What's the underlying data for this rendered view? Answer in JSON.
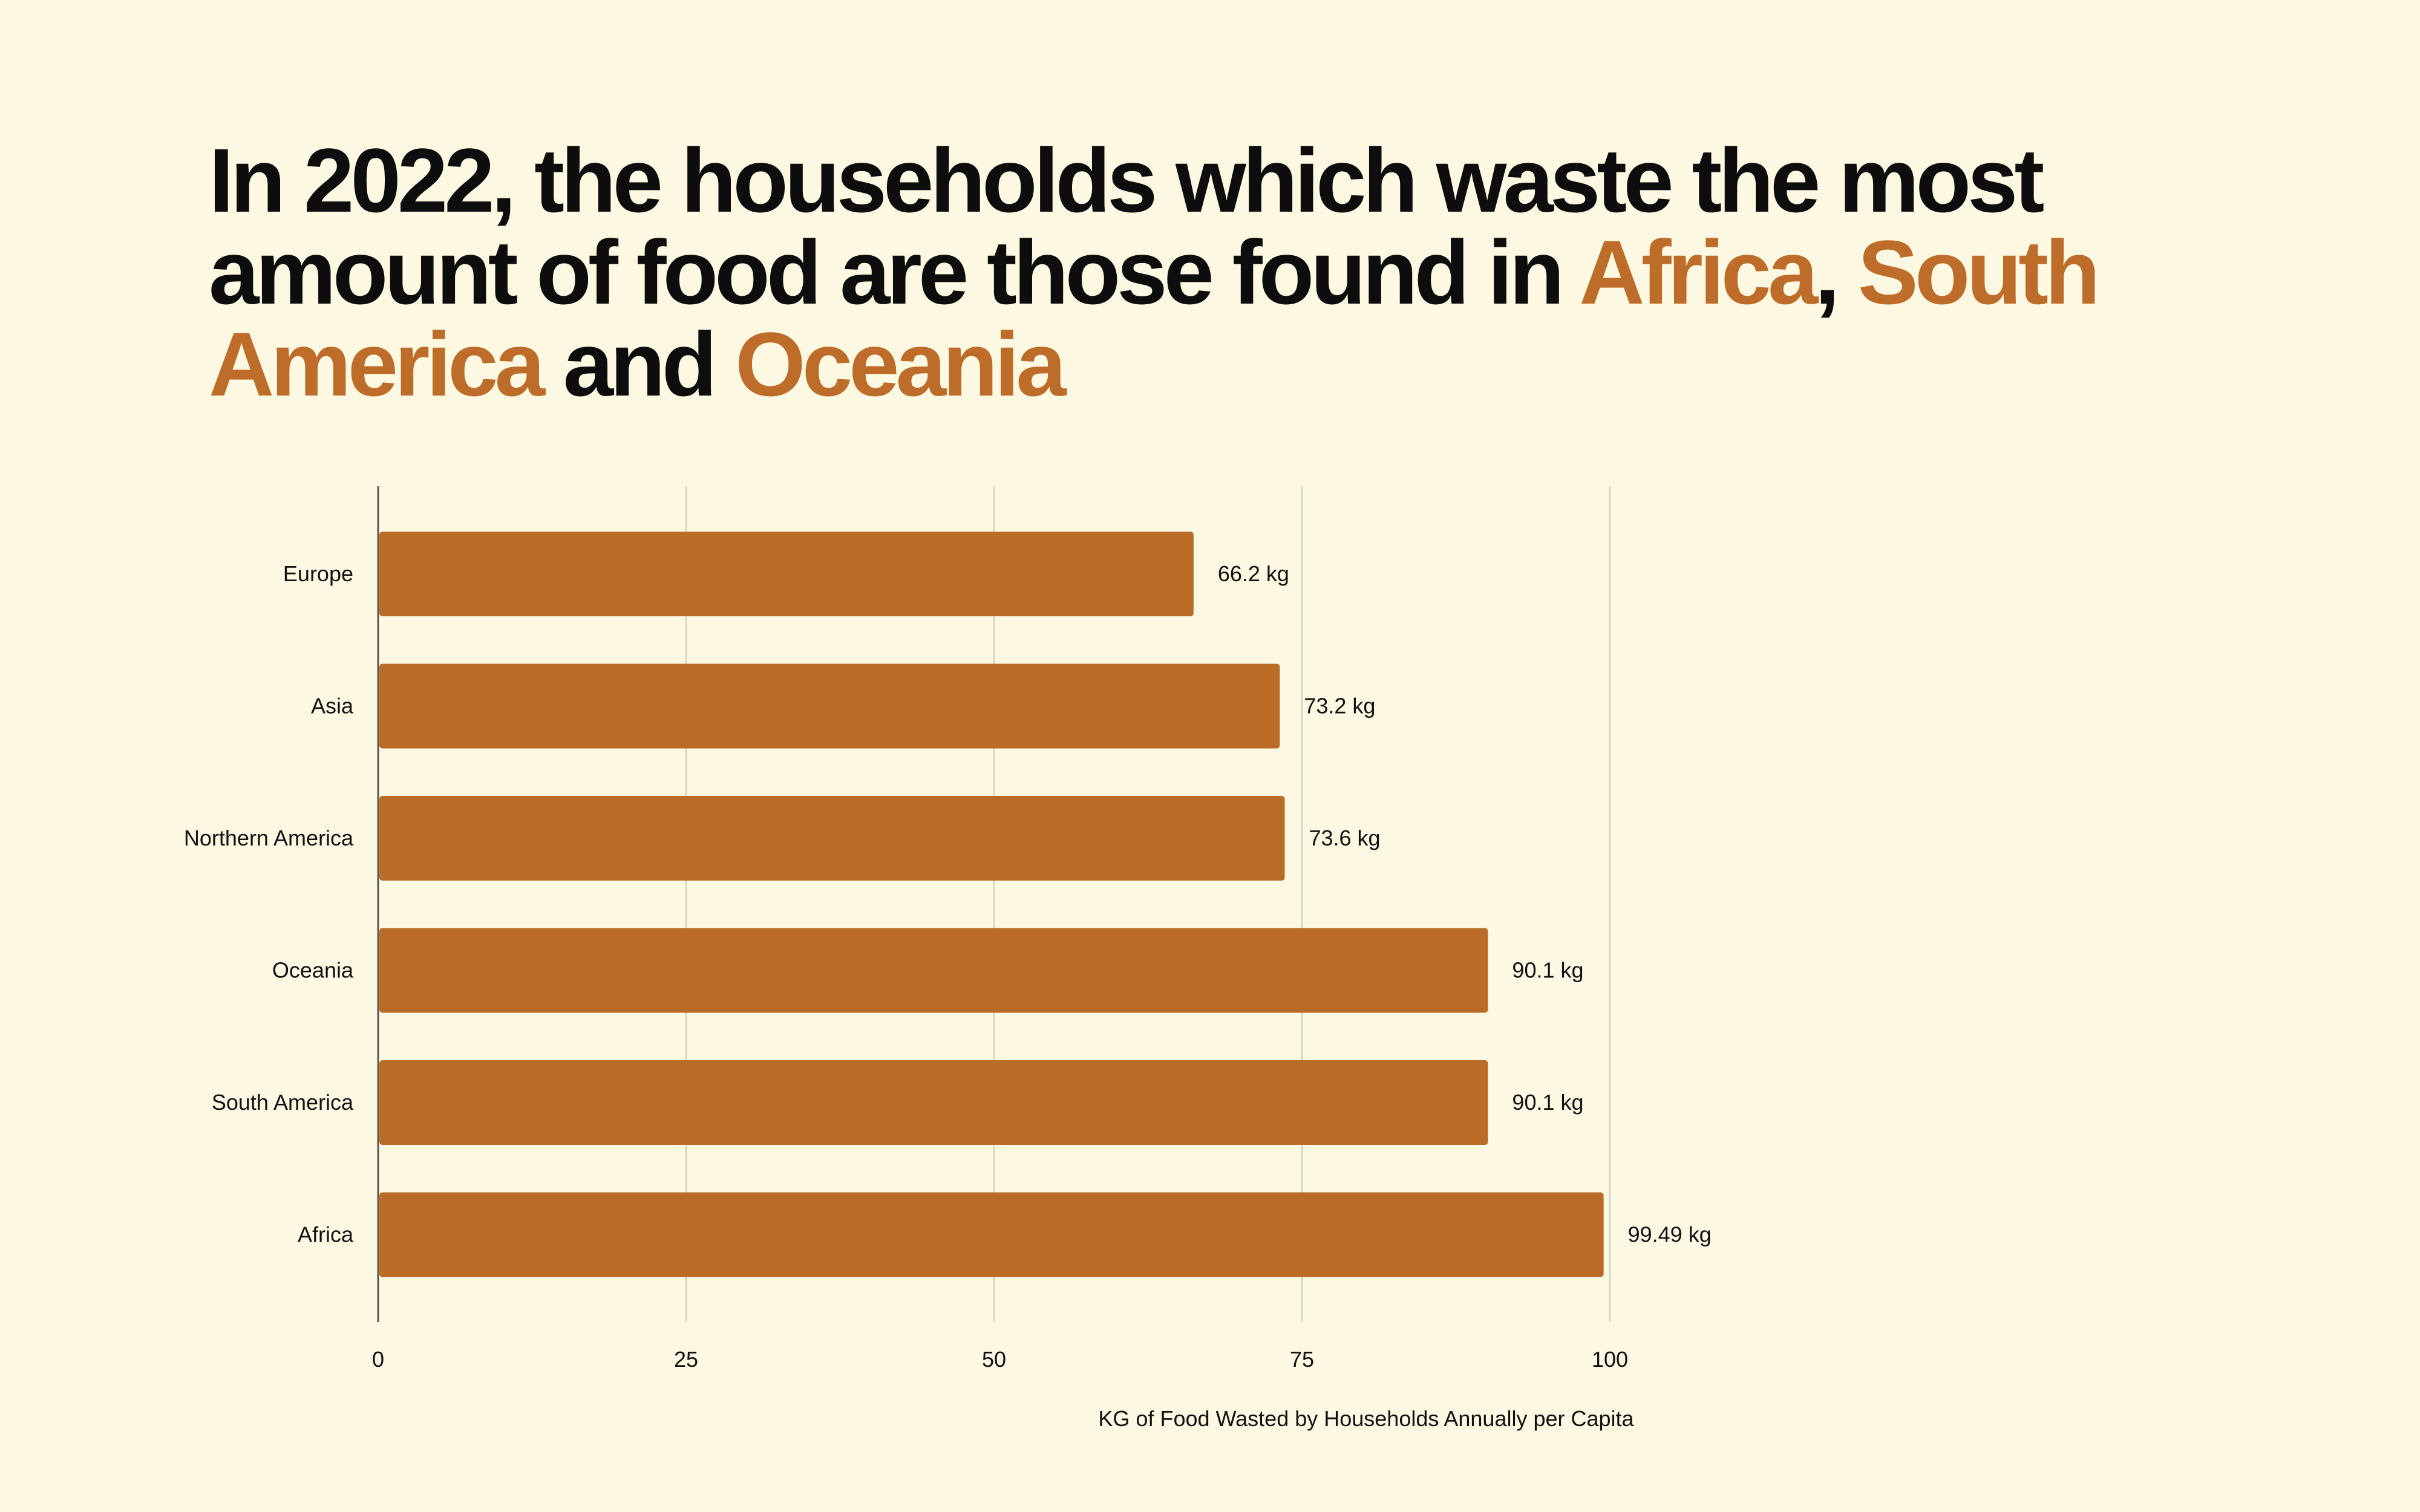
{
  "title": {
    "segments": [
      {
        "text": "In 2022, the households which waste the most amount of food are those found in ",
        "highlight": false
      },
      {
        "text": "Africa",
        "highlight": true
      },
      {
        "text": ", ",
        "highlight": false
      },
      {
        "text": "South America",
        "highlight": true
      },
      {
        "text": " and ",
        "highlight": false
      },
      {
        "text": "Oceania",
        "highlight": true
      }
    ]
  },
  "colors": {
    "background": "#FDF8E1",
    "bar": "#BA6B25",
    "highlight": "#BD6D29",
    "grid": "#D6D8C8",
    "axis": "#555555"
  },
  "chart_data": {
    "type": "bar",
    "orientation": "horizontal",
    "categories": [
      "Europe",
      "Asia",
      "Northern America",
      "Oceania",
      "South America",
      "Africa"
    ],
    "values": [
      66.2,
      73.2,
      73.6,
      90.1,
      90.1,
      99.49
    ],
    "data_labels": [
      "66.2 kg",
      "73.2 kg",
      "73.6 kg",
      "90.1 kg",
      "90.1 kg",
      "99.49 kg"
    ],
    "xlabel": "KG of Food Wasted by Households Annually per Capita",
    "ylabel": "",
    "xlim": [
      0,
      100
    ],
    "xticks": [
      0,
      25,
      50,
      75,
      100
    ],
    "grid": true,
    "legend": "none"
  }
}
